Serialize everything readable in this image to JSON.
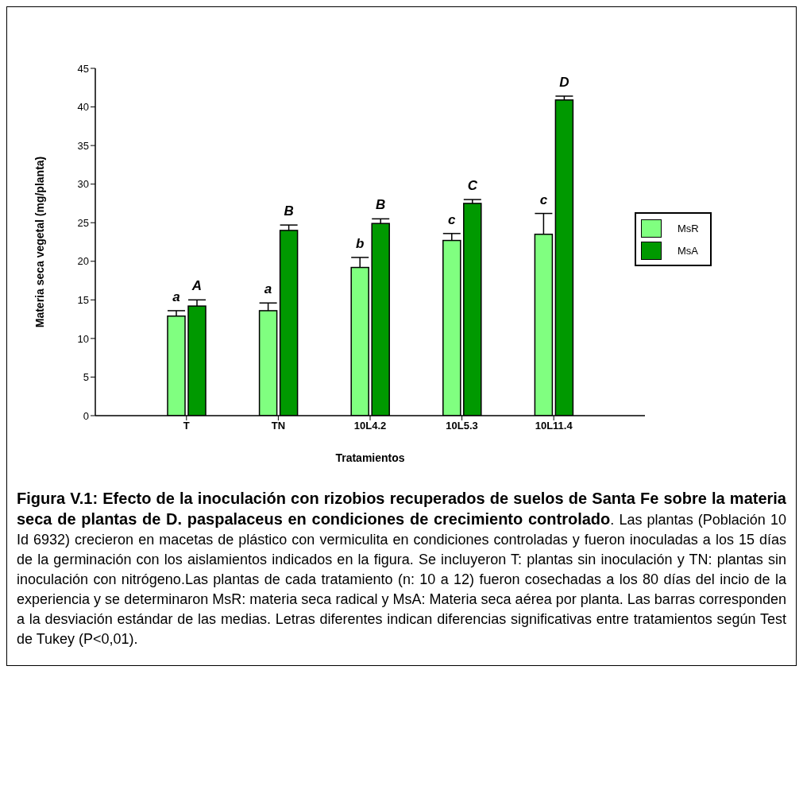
{
  "chart_data": {
    "type": "bar",
    "title": "Figura V.1: Efecto de la inoculación con rizobios recuperados de suelos de Santa Fe sobre la materia seca de plantas de D. paspalaceus en condiciones de crecimiento controlado",
    "annotations": [
      ". Las plantas (Población 10 Id 6932) crecieron en macetas de plástico con vermiculita en condiciones controladas y fueron inoculadas a los 15 días de la germinación con los aislamientos indicados en la figura. Se incluyeron T: plantas sin inoculación y TN: plantas sin inoculación con nitrógeno.Las plantas de cada tratamiento (n: 10 a 12) fueron cosechadas a los 80 días del incio de la experiencia y se determinaron MsR: materia seca radical y MsA: Materia seca aérea por planta. Las barras corresponden a la desviación estándar de las medias. Letras diferentes indican diferencias significativas entre tratamientos según Test de Tukey (P<0,01)."
    ],
    "xlabel": "Tratamientos",
    "ylabel": "Materia seca vegetal (mg/planta)",
    "categories": [
      "T",
      "TN",
      "10L4.2",
      "10L5.3",
      "10L11.4"
    ],
    "series": [
      {
        "name": "MsR",
        "color": "#80ff80",
        "values": [
          12.9,
          13.6,
          19.2,
          22.7,
          23.5
        ],
        "errors": [
          [
            12.9,
            13.6
          ],
          [
            13.6,
            14.6
          ],
          [
            19.2,
            20.5
          ],
          [
            22.7,
            23.6
          ],
          [
            23.5,
            26.2
          ]
        ],
        "value_labels": [
          "a",
          "a",
          "b",
          "c",
          "c"
        ]
      },
      {
        "name": "MsA",
        "color": "#009900",
        "values": [
          14.2,
          24.0,
          24.9,
          27.5,
          40.9
        ],
        "errors": [
          [
            14.2,
            15.0
          ],
          [
            24.0,
            24.7
          ],
          [
            24.9,
            25.5
          ],
          [
            27.5,
            28.0
          ],
          [
            40.9,
            41.4
          ]
        ],
        "value_labels": [
          "A",
          "B",
          "B",
          "C",
          "D"
        ]
      }
    ],
    "ylim": [
      0,
      45
    ],
    "yticks": [
      0,
      5,
      10,
      15,
      20,
      25,
      30,
      35,
      40,
      45
    ],
    "grid": false,
    "legend": "right"
  }
}
